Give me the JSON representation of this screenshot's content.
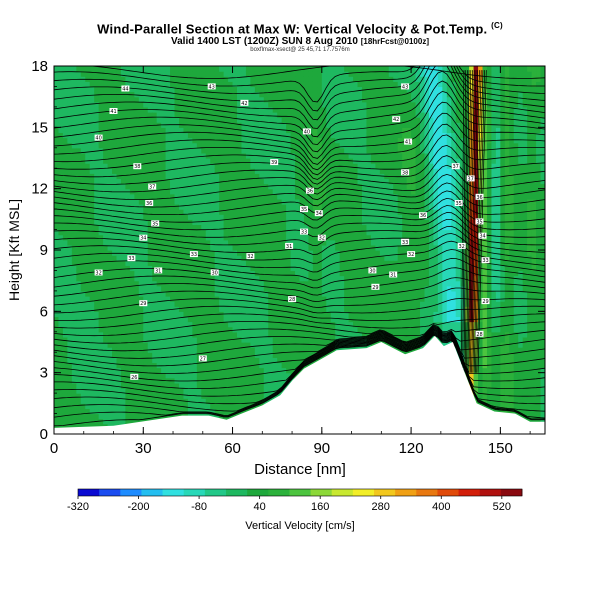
{
  "header": {
    "title": "Wind-Parallel Section at Max W: Vertical Velocity & Pot.Temp.",
    "copyright": "(C)",
    "subtitle_main": "Valid 1400 LST (1200Z) SUN 8 Aug 2010",
    "subtitle_note": "[18hrFcst@0100z]",
    "small_line": "boxflmax-xsect@ 25 45,71 17.7576m"
  },
  "chart_data": {
    "type": "heatmap",
    "title": "Wind-Parallel Section at Max W: Vertical Velocity & Pot.Temp.",
    "xlabel": "Distance [nm]",
    "ylabel": "Height [Kft MSL]",
    "xlim": [
      0,
      165
    ],
    "ylim": [
      0,
      18
    ],
    "xticks": [
      0,
      30,
      60,
      90,
      120,
      150
    ],
    "yticks": [
      0,
      3,
      6,
      9,
      12,
      15,
      18
    ],
    "colorbar": {
      "label": "Vertical Velocity [cm/s]",
      "tick_labels": [
        "-320",
        "-200",
        "-80",
        "40",
        "160",
        "280",
        "400",
        "520"
      ],
      "tick_values": [
        -320,
        -200,
        -80,
        40,
        160,
        280,
        400,
        520
      ],
      "colors": [
        "#0a0ad2",
        "#1a4cf0",
        "#1e8cff",
        "#23bef0",
        "#30e0e0",
        "#28d8b8",
        "#22c888",
        "#1eb860",
        "#1ea83c",
        "#2bb13b",
        "#4cc43f",
        "#8cd838",
        "#c8e830",
        "#f2ee28",
        "#f2c81e",
        "#f0a014",
        "#e87810",
        "#e04a0a",
        "#d21e0a",
        "#b0100e",
        "#8a0a10"
      ]
    },
    "terrain_kft": [
      [
        0,
        0.3
      ],
      [
        20,
        0.4
      ],
      [
        43,
        0.9
      ],
      [
        52,
        0.9
      ],
      [
        58,
        0.7
      ],
      [
        63,
        1.0
      ],
      [
        70,
        1.4
      ],
      [
        76,
        1.9
      ],
      [
        80,
        2.6
      ],
      [
        84,
        3.2
      ],
      [
        89,
        3.6
      ],
      [
        95,
        4.1
      ],
      [
        105,
        4.2
      ],
      [
        110,
        4.5
      ],
      [
        118,
        3.9
      ],
      [
        124,
        4.2
      ],
      [
        128,
        4.8
      ],
      [
        131,
        4.3
      ],
      [
        134,
        4.5
      ],
      [
        138,
        3.0
      ],
      [
        142,
        1.5
      ],
      [
        148,
        1.1
      ],
      [
        155,
        1.0
      ],
      [
        160,
        0.6
      ],
      [
        165,
        0.6
      ]
    ],
    "updraft_core_nm": 141,
    "updraft_max_cms": 560,
    "theta_contour_labels": [
      {
        "x": 24,
        "y": 16.9,
        "label": "44"
      },
      {
        "x": 53,
        "y": 17.0,
        "label": "43"
      },
      {
        "x": 64,
        "y": 16.2,
        "label": "42"
      },
      {
        "x": 20,
        "y": 15.8,
        "label": "41"
      },
      {
        "x": 15,
        "y": 14.5,
        "label": "40"
      },
      {
        "x": 74,
        "y": 13.3,
        "label": "39"
      },
      {
        "x": 28,
        "y": 13.1,
        "label": "38"
      },
      {
        "x": 33,
        "y": 12.1,
        "label": "37"
      },
      {
        "x": 32,
        "y": 11.3,
        "label": "36"
      },
      {
        "x": 34,
        "y": 10.3,
        "label": "35"
      },
      {
        "x": 30,
        "y": 9.6,
        "label": "34"
      },
      {
        "x": 26,
        "y": 8.6,
        "label": "33"
      },
      {
        "x": 15,
        "y": 7.9,
        "label": "32"
      },
      {
        "x": 35,
        "y": 8.0,
        "label": "31"
      },
      {
        "x": 54,
        "y": 7.9,
        "label": "30"
      },
      {
        "x": 30,
        "y": 6.4,
        "label": "29"
      },
      {
        "x": 80,
        "y": 6.6,
        "label": "28"
      },
      {
        "x": 50,
        "y": 3.7,
        "label": "27"
      },
      {
        "x": 27,
        "y": 2.8,
        "label": "26"
      },
      {
        "x": 47,
        "y": 8.8,
        "label": "33"
      },
      {
        "x": 66,
        "y": 8.7,
        "label": "32"
      },
      {
        "x": 84,
        "y": 9.9,
        "label": "33"
      },
      {
        "x": 86,
        "y": 11.9,
        "label": "36"
      },
      {
        "x": 84,
        "y": 11.0,
        "label": "35"
      },
      {
        "x": 89,
        "y": 10.8,
        "label": "34"
      },
      {
        "x": 90,
        "y": 9.6,
        "label": "32"
      },
      {
        "x": 79,
        "y": 9.2,
        "label": "31"
      },
      {
        "x": 107,
        "y": 8.0,
        "label": "30"
      },
      {
        "x": 120,
        "y": 8.8,
        "label": "32"
      },
      {
        "x": 114,
        "y": 7.8,
        "label": "31"
      },
      {
        "x": 108,
        "y": 7.2,
        "label": "29"
      },
      {
        "x": 85,
        "y": 14.8,
        "label": "40"
      },
      {
        "x": 119,
        "y": 14.3,
        "label": "41"
      },
      {
        "x": 115,
        "y": 15.4,
        "label": "42"
      },
      {
        "x": 118,
        "y": 12.8,
        "label": "38"
      },
      {
        "x": 124,
        "y": 10.7,
        "label": "36"
      },
      {
        "x": 118,
        "y": 9.4,
        "label": "33"
      },
      {
        "x": 135,
        "y": 13.1,
        "label": "37"
      },
      {
        "x": 136,
        "y": 11.3,
        "label": "35"
      },
      {
        "x": 137,
        "y": 9.2,
        "label": "32"
      },
      {
        "x": 118,
        "y": 17.0,
        "label": "43"
      },
      {
        "x": 140,
        "y": 12.5,
        "label": "37"
      },
      {
        "x": 143,
        "y": 11.6,
        "label": "36"
      },
      {
        "x": 143,
        "y": 10.4,
        "label": "35"
      },
      {
        "x": 144,
        "y": 9.7,
        "label": "34"
      },
      {
        "x": 145,
        "y": 8.5,
        "label": "33"
      },
      {
        "x": 145,
        "y": 6.5,
        "label": "29"
      },
      {
        "x": 143,
        "y": 4.9,
        "label": "28"
      }
    ]
  }
}
